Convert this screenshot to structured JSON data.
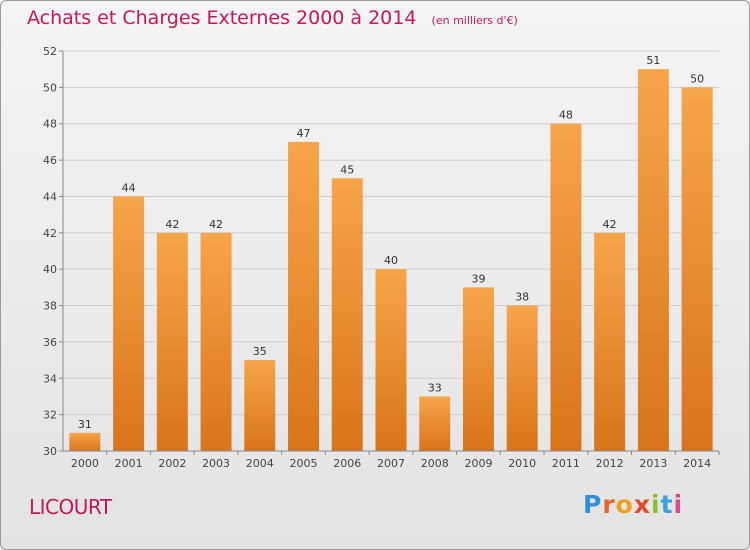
{
  "title": "Achats et Charges Externes 2000 à 2014",
  "unit": "(en milliers d'€)",
  "commune": "LICOURT",
  "logo": {
    "letters": [
      "P",
      "r",
      "o",
      "x",
      "i",
      "t",
      "i"
    ]
  },
  "colors": {
    "bar_top": "#f7a54a",
    "bar_bottom": "#d9741a",
    "title": "#c2185b",
    "grid": "#cccccc"
  },
  "chart_data": {
    "type": "bar",
    "title": "Achats et Charges Externes 2000 à 2014",
    "xlabel": "",
    "ylabel": "",
    "categories": [
      "2000",
      "2001",
      "2002",
      "2003",
      "2004",
      "2005",
      "2006",
      "2007",
      "2008",
      "2009",
      "2010",
      "2011",
      "2012",
      "2013",
      "2014"
    ],
    "values": [
      31,
      44,
      42,
      42,
      35,
      47,
      45,
      40,
      33,
      39,
      38,
      48,
      42,
      51,
      50
    ],
    "ylim": [
      30,
      52
    ],
    "yticks": [
      30,
      32,
      34,
      36,
      38,
      40,
      42,
      44,
      46,
      48,
      50,
      52
    ],
    "grid": true,
    "data_labels": true
  }
}
